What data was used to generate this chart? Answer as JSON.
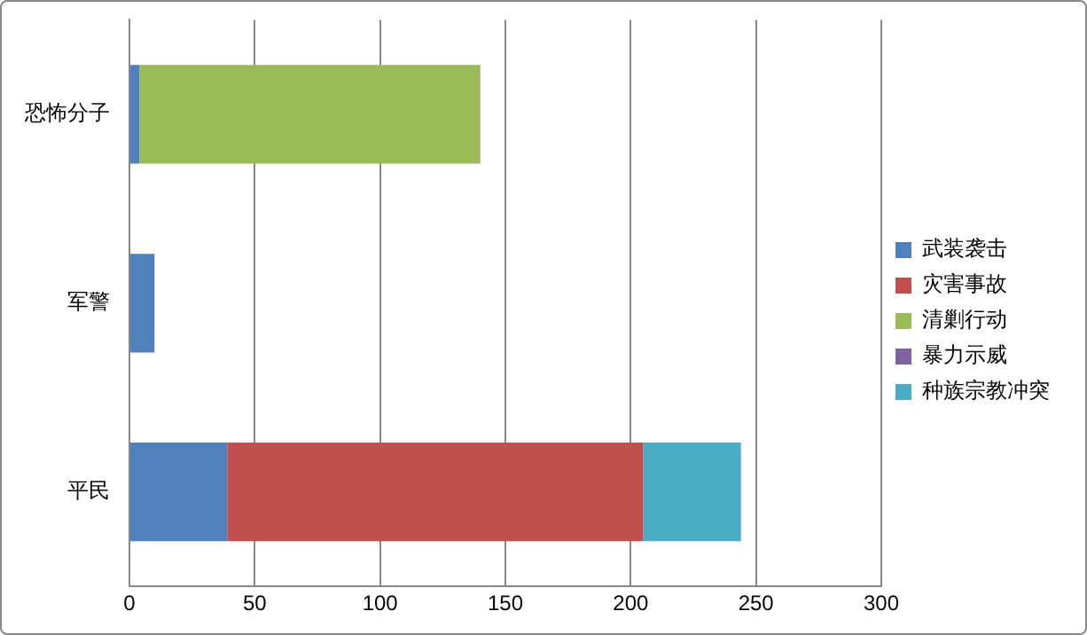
{
  "chart_data": {
    "type": "bar",
    "orientation": "horizontal",
    "stacked": true,
    "categories": [
      "恐怖分子",
      "军警",
      "平民"
    ],
    "series": [
      {
        "name": "武装袭击",
        "color": "#4f81bd",
        "values": [
          4,
          10,
          39
        ]
      },
      {
        "name": "灾害事故",
        "color": "#c0504d",
        "values": [
          0,
          0,
          166
        ]
      },
      {
        "name": "清剿行动",
        "color": "#9bbb59",
        "values": [
          136,
          0,
          0
        ]
      },
      {
        "name": "暴力示威",
        "color": "#8064a2",
        "values": [
          0,
          0,
          0
        ]
      },
      {
        "name": "种族宗教冲突",
        "color": "#4bacc6",
        "values": [
          0,
          0,
          39
        ]
      }
    ],
    "xlim": [
      0,
      300
    ],
    "xticks": [
      0,
      50,
      100,
      150,
      200,
      250,
      300
    ],
    "grid": "x",
    "legend": "right"
  }
}
